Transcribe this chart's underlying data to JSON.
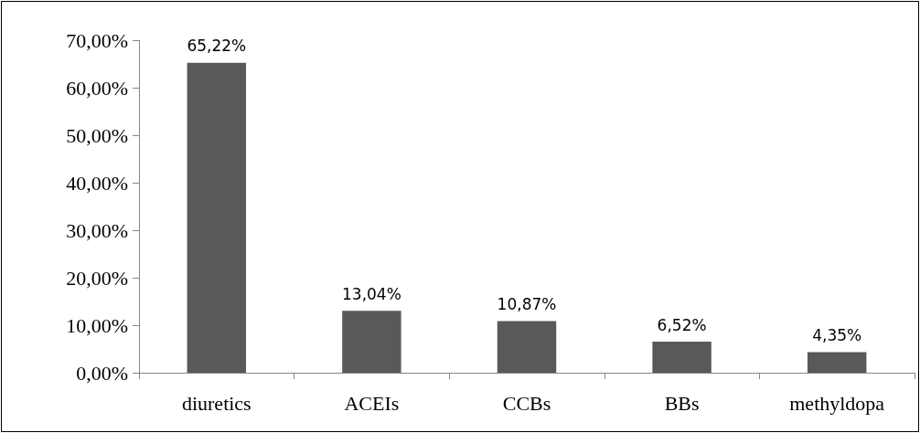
{
  "chart_data": {
    "type": "bar",
    "categories": [
      "diuretics",
      "ACEIs",
      "CCBs",
      "BBs",
      "methyldopa"
    ],
    "values": [
      65.22,
      13.04,
      10.87,
      6.52,
      4.35
    ],
    "value_labels": [
      "65,22%",
      "13,04%",
      "10,87%",
      "6,52%",
      "4,35%"
    ],
    "color": "#595959",
    "ylim": [
      0,
      70
    ],
    "yticks": [
      {
        "value": 0,
        "label": "0,00%"
      },
      {
        "value": 10,
        "label": "10,00%"
      },
      {
        "value": 20,
        "label": "20,00%"
      },
      {
        "value": 30,
        "label": "30,00%"
      },
      {
        "value": 40,
        "label": "40,00%"
      },
      {
        "value": 50,
        "label": "50,00%"
      },
      {
        "value": 60,
        "label": "60,00%"
      },
      {
        "value": 70,
        "label": "70,00%"
      }
    ],
    "grid": false
  }
}
